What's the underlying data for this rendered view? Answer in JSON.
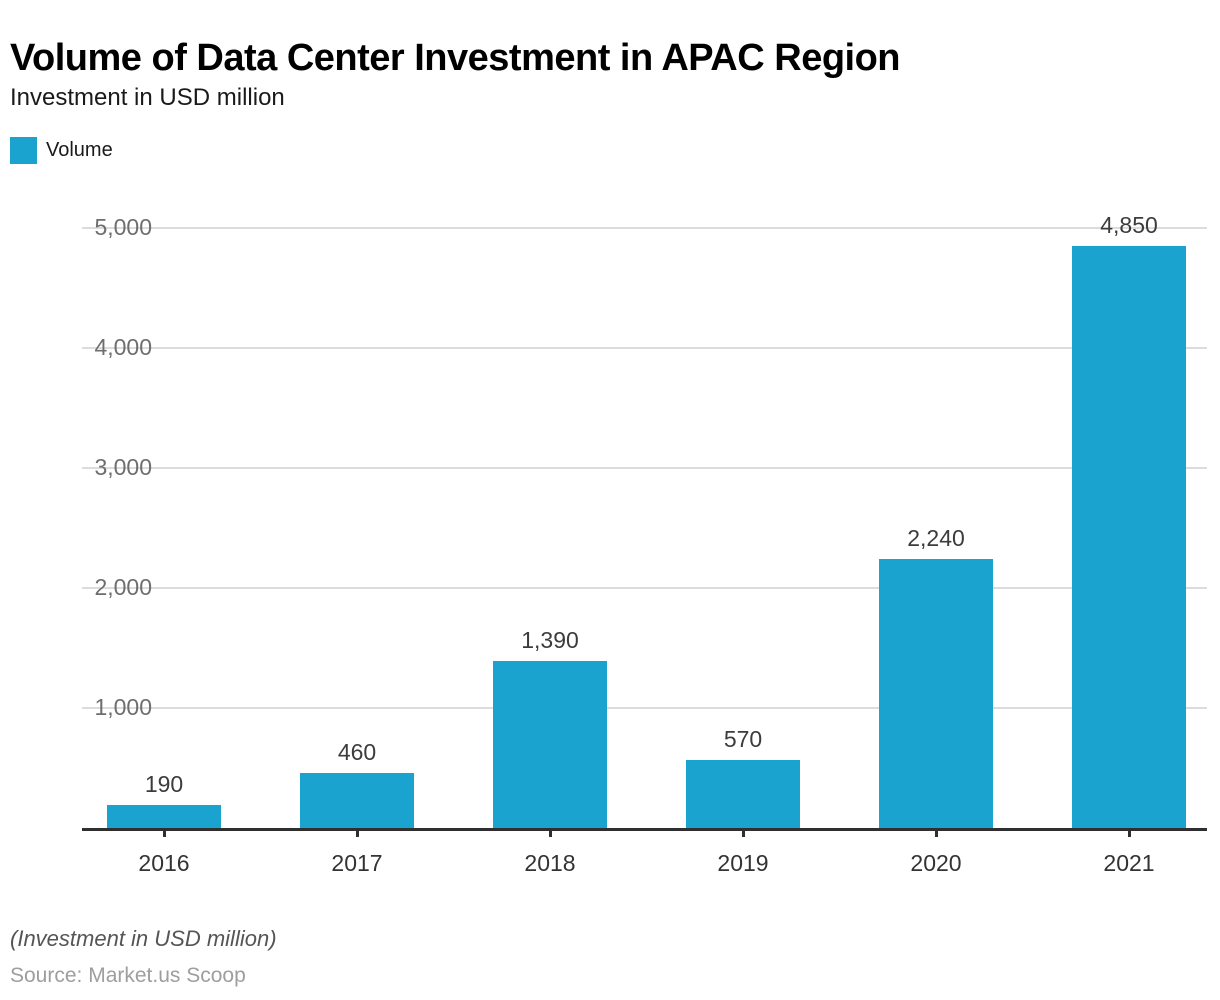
{
  "header": {
    "title": "Volume of Data Center Investment in APAC Region",
    "subtitle": "Investment in USD million"
  },
  "legend": {
    "label": "Volume",
    "swatch_color": "#1aa3ce"
  },
  "chart_data": {
    "type": "bar",
    "title": "Volume of Data Center Investment in APAC Region",
    "subtitle": "Investment in USD million",
    "series_name": "Volume",
    "categories": [
      "2016",
      "2017",
      "2018",
      "2019",
      "2020",
      "2021"
    ],
    "values": [
      190,
      460,
      1390,
      570,
      2240,
      4850
    ],
    "value_labels": [
      "190",
      "460",
      "1,390",
      "570",
      "2,240",
      "4,850"
    ],
    "xlabel": "",
    "ylabel": "Investment in USD million",
    "ylim": [
      0,
      5000
    ],
    "yticks": [
      5000,
      4000,
      3000,
      2000,
      1000
    ],
    "ytick_labels": [
      "5,000",
      "4,000",
      "3,000",
      "2,000",
      "1,000"
    ],
    "grid": true,
    "legend_position": "top-left",
    "bar_color": "#1aa3ce",
    "gridline_color": "#dcdcdc",
    "axis_color": "#2f2f2f"
  },
  "footer": {
    "note": "(Investment in USD million)",
    "source": "Source: Market.us Scoop"
  }
}
